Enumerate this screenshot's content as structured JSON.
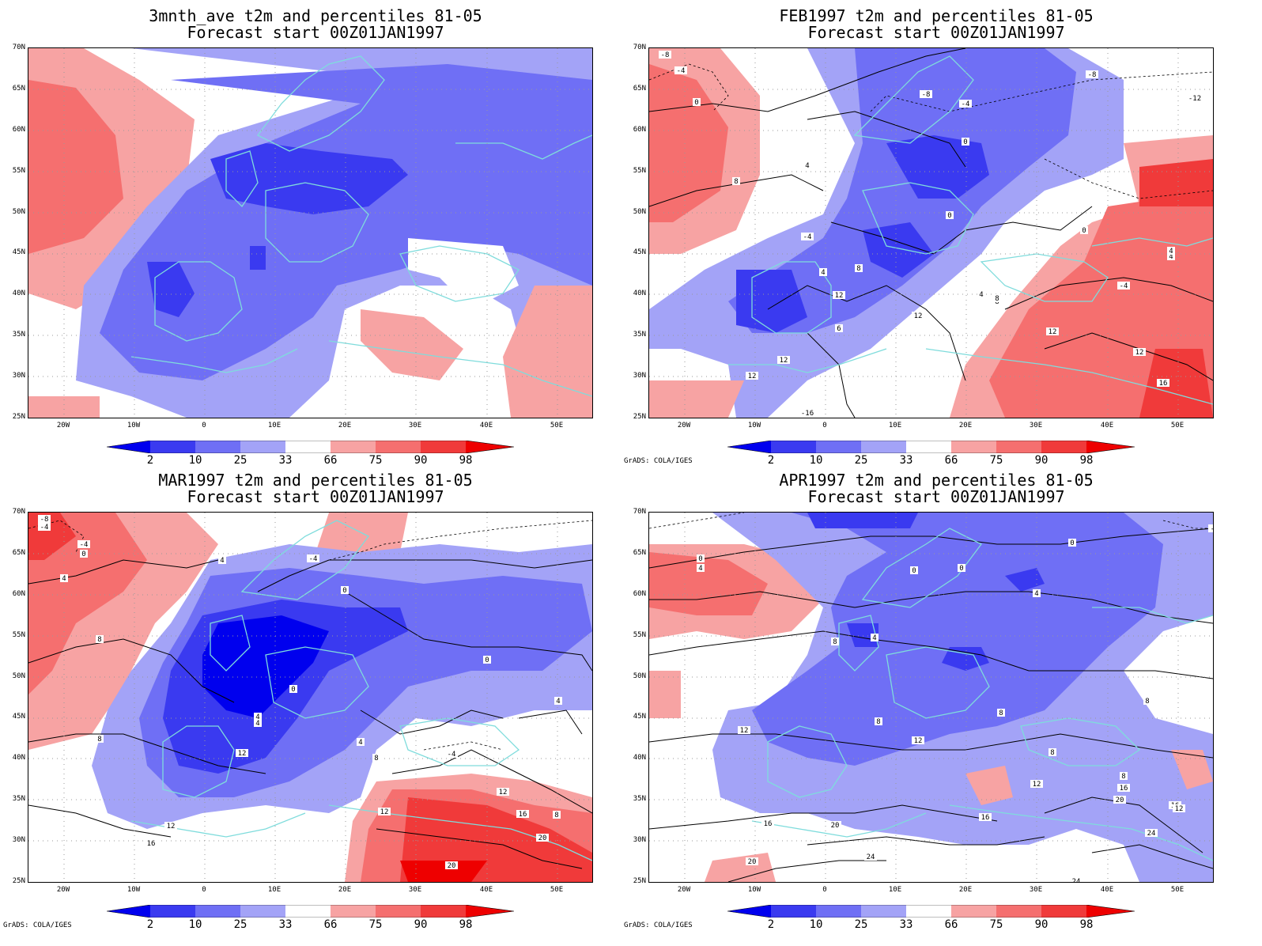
{
  "panels": [
    {
      "title1": "3mnth_ave t2m and percentiles 81-05",
      "title2": "Forecast start 00Z01JAN1997",
      "credit": ""
    },
    {
      "title1": "FEB1997 t2m and percentiles 81-05",
      "title2": "Forecast start 00Z01JAN1997",
      "credit": "GrADS: COLA/IGES"
    },
    {
      "title1": "MAR1997 t2m and percentiles 81-05",
      "title2": "Forecast start 00Z01JAN1997",
      "credit": "GrADS: COLA/IGES"
    },
    {
      "title1": "APR1997 t2m and percentiles 81-05",
      "title2": "Forecast start 00Z01JAN1997",
      "credit": "GrADS: COLA/IGES"
    }
  ],
  "lat_labels": [
    "70N",
    "65N",
    "60N",
    "55N",
    "50N",
    "45N",
    "40N",
    "35N",
    "30N",
    "25N"
  ],
  "lon_labels": [
    "20W",
    "10W",
    "0",
    "10E",
    "20E",
    "30E",
    "40E",
    "50E"
  ],
  "colorbar": {
    "labels": [
      "2",
      "10",
      "25",
      "33",
      "66",
      "75",
      "90",
      "98"
    ],
    "colors": [
      "#0000ee",
      "#3a3af0",
      "#6f6ff5",
      "#a3a3f7",
      "#ffffff",
      "#f7a3a3",
      "#f56f6f",
      "#f03a3a",
      "#ee0000"
    ]
  },
  "contour_labels": {
    "feb": [
      "-8",
      "-4",
      "0",
      "-8",
      "-8",
      "-12",
      "-4",
      "0",
      "4",
      "8",
      "0",
      "-4",
      "0",
      "4",
      "-4",
      "4",
      "8",
      "4",
      "12",
      "12",
      "4",
      "-4",
      "8",
      "12",
      "12",
      "16",
      "-16",
      "12",
      "8",
      "6",
      "12"
    ],
    "mar": [
      "-8",
      "-4",
      "-4",
      "0",
      "4",
      "4",
      "-4",
      "0",
      "8",
      "0",
      "0",
      "4",
      "4",
      "8",
      "12",
      "12",
      "-4",
      "8",
      "12",
      "4",
      "16",
      "8",
      "20",
      "12",
      "16",
      "20",
      "4"
    ],
    "apr": [
      "0",
      "4",
      "0",
      "0",
      "0",
      "4",
      "4",
      "-4",
      "8",
      "8",
      "8",
      "8",
      "12",
      "12",
      "8",
      "16",
      "20",
      "24",
      "8",
      "16",
      "12",
      "20",
      "24",
      "16",
      "20",
      "24",
      "12",
      "16"
    ]
  }
}
